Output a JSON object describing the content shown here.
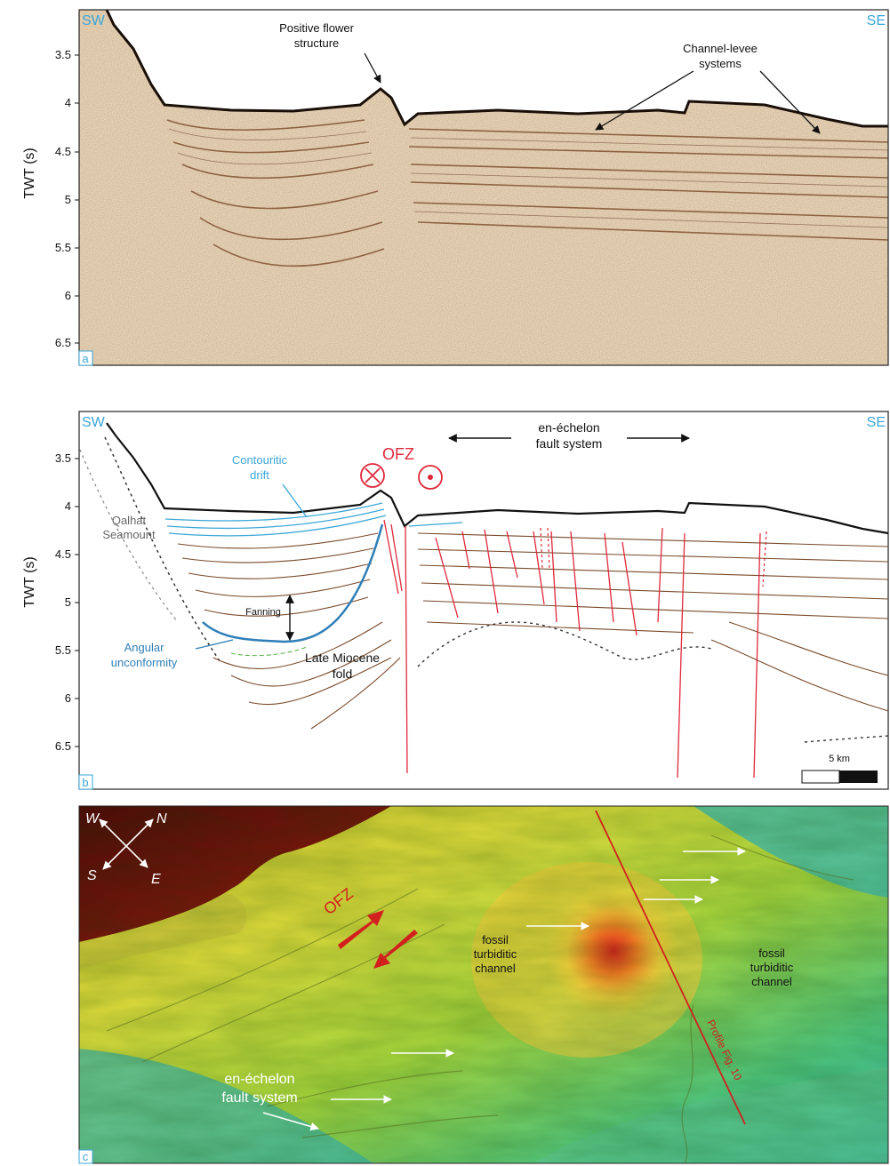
{
  "panel_a": {
    "tag": "a",
    "dir_left": "SW",
    "dir_right": "SE",
    "y_axis_label": "TWT (s)",
    "ticks": [
      "3.5",
      "4",
      "4.5",
      "5",
      "5.5",
      "6",
      "6.5"
    ],
    "annotations": {
      "flower_line1": "Positive flower",
      "flower_line2": "structure",
      "levee_line1": "Channel-levee",
      "levee_line2": "systems"
    }
  },
  "panel_b": {
    "tag": "b",
    "dir_left": "SW",
    "dir_right": "SE",
    "y_axis_label": "TWT (s)",
    "ticks": [
      "3.5",
      "4",
      "4.5",
      "5",
      "5.5",
      "6",
      "6.5"
    ],
    "annotations": {
      "fault_system_line1": "en-échelon",
      "fault_system_line2": "fault system",
      "ofz": "OFZ",
      "drift_line1": "Contouritic",
      "drift_line2": "drift",
      "seamount_line1": "Qalhat",
      "seamount_line2": "Seamount",
      "fanning": "Fanning",
      "unconf_line1": "Angular",
      "unconf_line2": "unconformity",
      "fold_line1": "Late Miocene",
      "fold_line2": "fold"
    },
    "scale_bar": "5 km"
  },
  "panel_c": {
    "tag": "c",
    "compass": {
      "w": "W",
      "n": "N",
      "s": "S",
      "e": "E"
    },
    "annotations": {
      "ofz": "OFZ",
      "channel1_line1": "fossil",
      "channel1_line2": "turbiditic",
      "channel1_line3": "channel",
      "channel2_line1": "fossil",
      "channel2_line2": "turbiditic",
      "channel2_line3": "channel",
      "fault_system_line1": "en-échelon",
      "fault_system_line2": "fault system",
      "profile": "Profile Fig. 10"
    }
  },
  "colors": {
    "accent_blue": "#3aa6d8",
    "fault_red": "#e0283a",
    "horizon_brown": "#7a4a2a"
  }
}
